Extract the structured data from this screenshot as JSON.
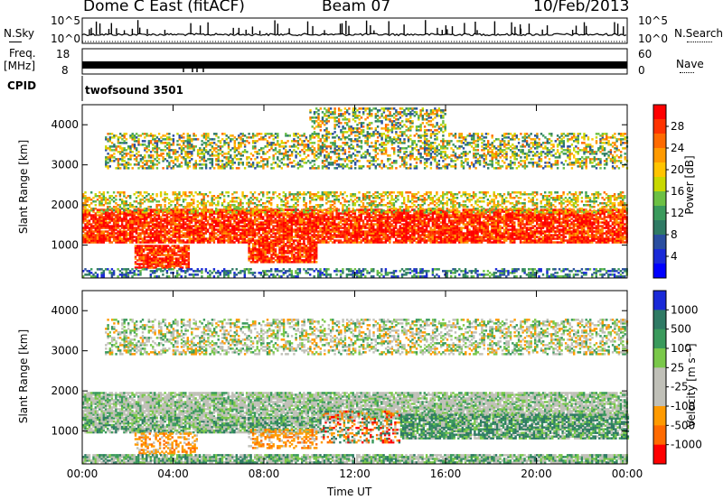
{
  "header": {
    "station": "Dome C East (fitACF)",
    "beam": "Beam 07",
    "date": "10/Feb/2013"
  },
  "strips": {
    "nsky_label": "N.Sky",
    "nsky_top": "10^5",
    "nsky_bottom": "10^0",
    "nsearch_top": "10^5",
    "nsearch_bottom": "10^0",
    "nsearch_label": "N.Search",
    "freq_label": "Freq.",
    "freq_unit": "[MHz]",
    "freq_top": "18",
    "freq_bottom": "8",
    "nave_top": "60",
    "nave_bottom": "0",
    "nave_label": "Nave",
    "cpid_label": "CPID",
    "cpid_value": "twofsound 3501"
  },
  "chart_data": [
    {
      "type": "heatmap",
      "name": "power",
      "ylabel": "Slant Range [km]",
      "xlabel": "",
      "x_ticks": [
        "00:00",
        "04:00",
        "08:00",
        "12:00",
        "16:00",
        "20:00",
        "00:00"
      ],
      "y_ticks": [
        1000,
        2000,
        3000,
        4000
      ],
      "ylim": [
        180,
        4500
      ],
      "colorbar_label": "Power [dB]",
      "colorbar_ticks": [
        "28",
        "24",
        "20",
        "16",
        "12",
        "8",
        "4"
      ],
      "colorbar_colors": [
        "#ff0000",
        "#ff3300",
        "#ff6a00",
        "#ff9a00",
        "#ffc400",
        "#c8d800",
        "#6cc044",
        "#3a9a5c",
        "#2f7a64",
        "#2a4ea0",
        "#1a2ad8",
        "#0000ff"
      ],
      "bands": [
        {
          "start": 0.0,
          "end": 24.0,
          "min_km": 1050,
          "max_km": 1900,
          "level": "high"
        },
        {
          "start": 2.3,
          "end": 4.7,
          "min_km": 420,
          "max_km": 1000,
          "level": "high"
        },
        {
          "start": 7.3,
          "end": 10.3,
          "min_km": 560,
          "max_km": 1050,
          "level": "high"
        },
        {
          "start": 0.0,
          "end": 24.0,
          "min_km": 1800,
          "max_km": 2300,
          "level": "mid"
        },
        {
          "start": 1.0,
          "end": 24.0,
          "min_km": 2900,
          "max_km": 3800,
          "level": "mixed"
        },
        {
          "start": 10.0,
          "end": 16.0,
          "min_km": 3800,
          "max_km": 4400,
          "level": "mixed"
        },
        {
          "start": 0.0,
          "end": 24.0,
          "min_km": 200,
          "max_km": 420,
          "level": "low"
        }
      ]
    },
    {
      "type": "heatmap",
      "name": "velocity",
      "ylabel": "Slant Range [km]",
      "xlabel": "Time UT",
      "x_ticks": [
        "00:00",
        "04:00",
        "08:00",
        "12:00",
        "16:00",
        "20:00",
        "00:00"
      ],
      "y_ticks": [
        1000,
        2000,
        3000,
        4000
      ],
      "ylim": [
        180,
        4500
      ],
      "colorbar_label": "Velocity [m s⁻¹]",
      "colorbar_ticks": [
        "1000",
        "500",
        "100",
        "25",
        "-25",
        "-100",
        "-500",
        "-1000"
      ],
      "colorbar_colors": [
        "#1a2ad8",
        "#2f7a64",
        "#3a9a5c",
        "#7ac84a",
        "#c0c0b8",
        "#c0c0b8",
        "#ff9a00",
        "#ff6a00",
        "#ff0000"
      ],
      "bands": [
        {
          "start": 0.0,
          "end": 24.0,
          "min_km": 1300,
          "max_km": 1950,
          "level": "zero"
        },
        {
          "start": 0.0,
          "end": 10.5,
          "min_km": 950,
          "max_km": 1350,
          "level": "zero-pos"
        },
        {
          "start": 2.3,
          "end": 5.0,
          "min_km": 420,
          "max_km": 950,
          "level": "neg"
        },
        {
          "start": 7.3,
          "end": 10.3,
          "min_km": 560,
          "max_km": 1050,
          "level": "neg"
        },
        {
          "start": 10.5,
          "end": 14.0,
          "min_km": 700,
          "max_km": 1500,
          "level": "neg-mix"
        },
        {
          "start": 14.0,
          "end": 24.0,
          "min_km": 800,
          "max_km": 1400,
          "level": "pos"
        },
        {
          "start": 1.0,
          "end": 24.0,
          "min_km": 2900,
          "max_km": 3800,
          "level": "zero-mix"
        },
        {
          "start": 0.0,
          "end": 24.0,
          "min_km": 200,
          "max_km": 420,
          "level": "zero-pos"
        }
      ]
    }
  ]
}
